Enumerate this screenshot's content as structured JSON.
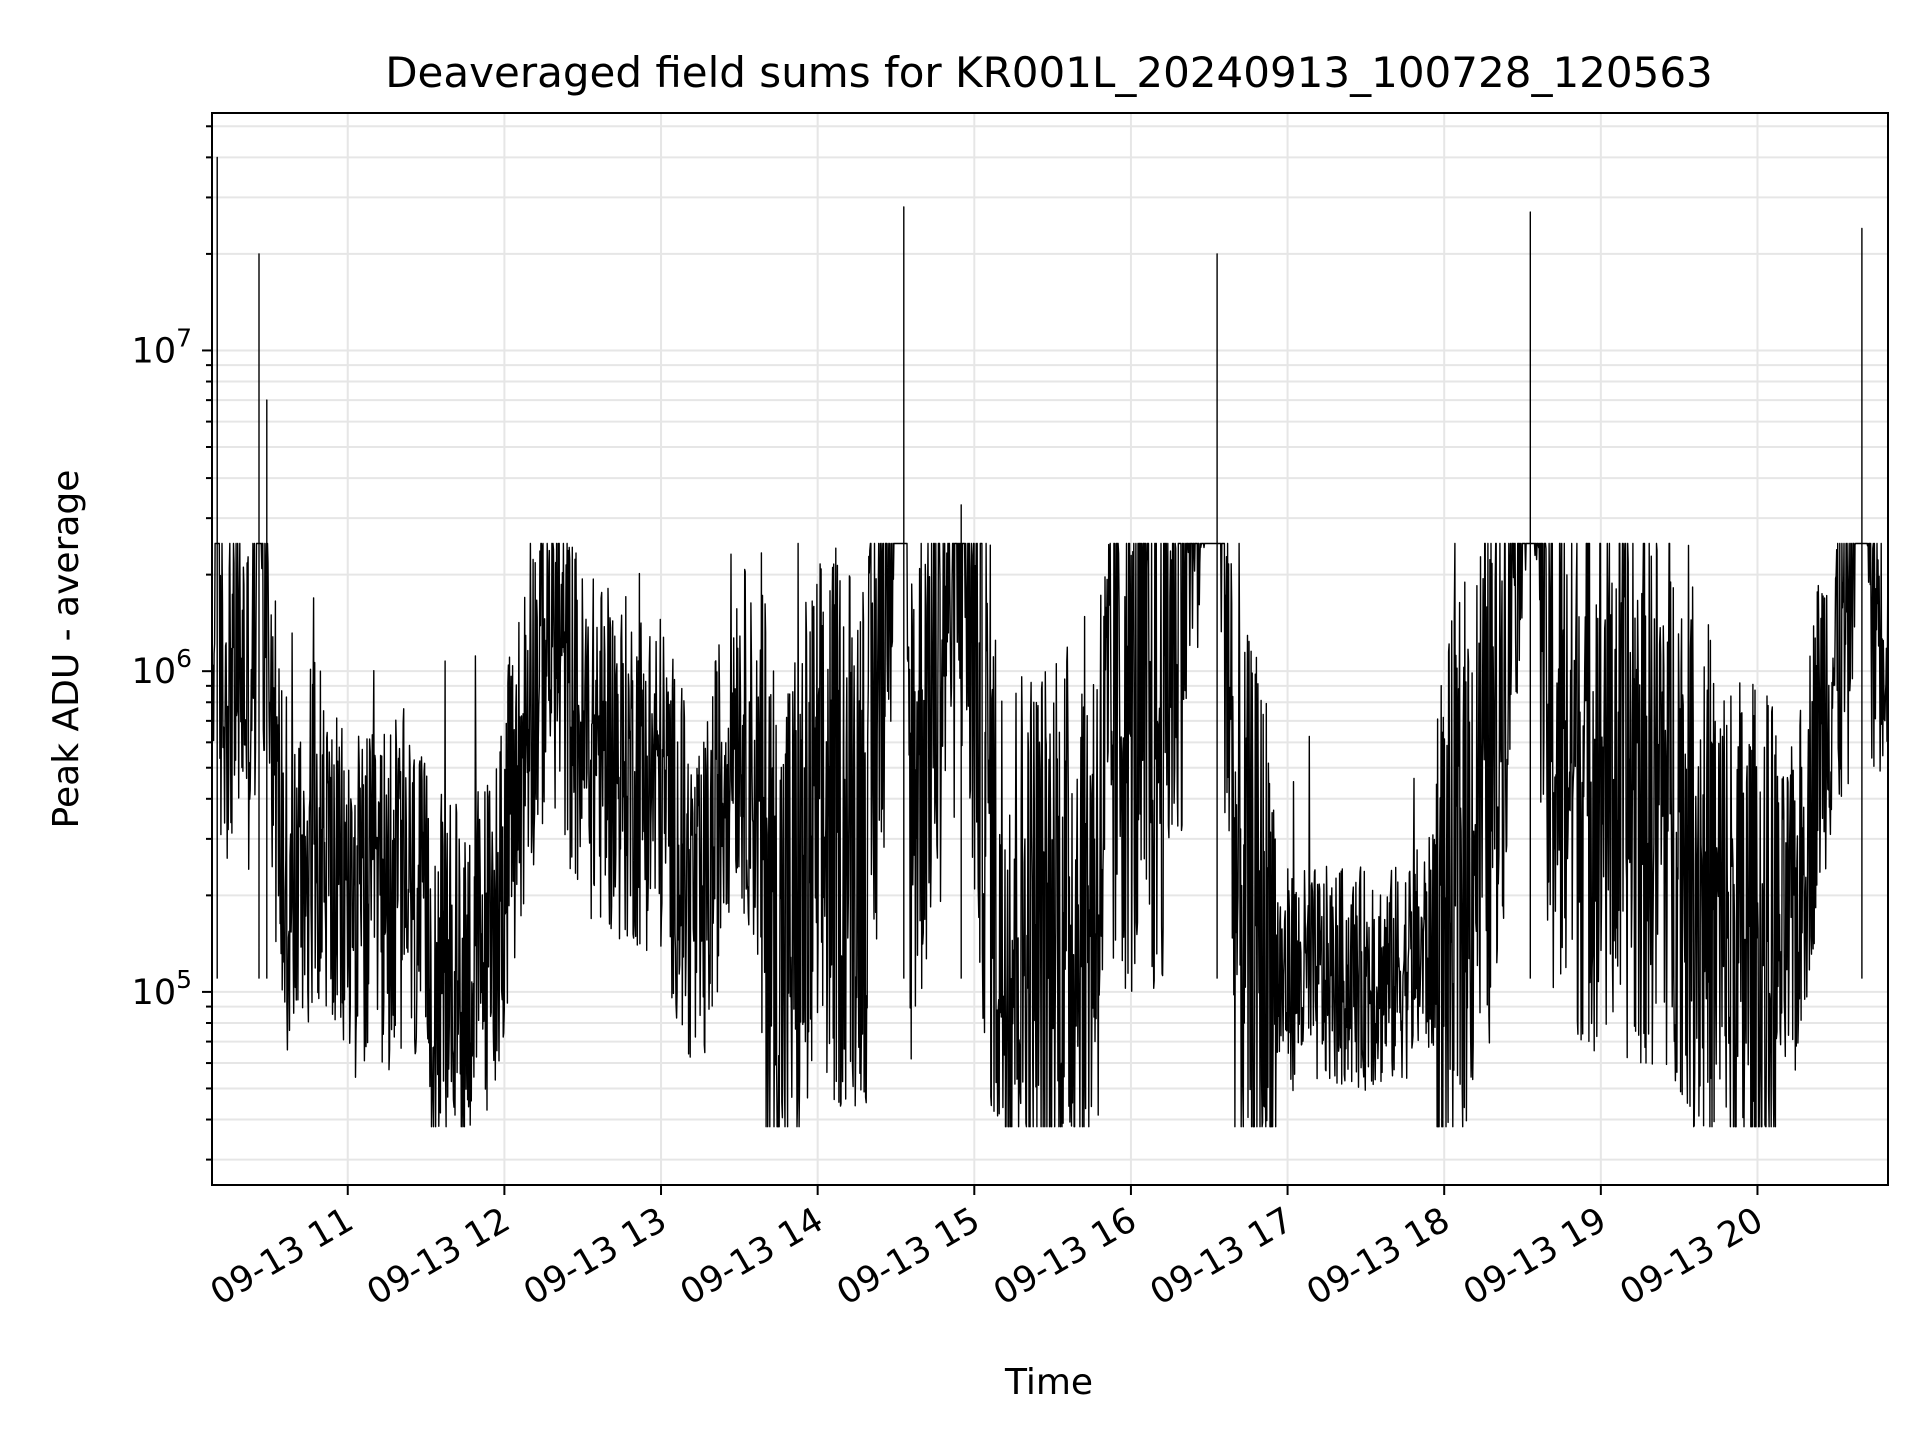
{
  "chart_data": {
    "type": "line",
    "title": "Deaveraged field sums for KR001L_20240913_100728_120563",
    "xlabel": "Time",
    "ylabel": "Peak ADU - average",
    "yscale": "log",
    "ylim": [
      25000,
      55000000
    ],
    "xlim": [
      "2024-09-13 10:08",
      "2024-09-13 20:50"
    ],
    "x_ticks": [
      {
        "value": "2024-09-13 11:00",
        "label": "09-13 11"
      },
      {
        "value": "2024-09-13 12:00",
        "label": "09-13 12"
      },
      {
        "value": "2024-09-13 13:00",
        "label": "09-13 13"
      },
      {
        "value": "2024-09-13 14:00",
        "label": "09-13 14"
      },
      {
        "value": "2024-09-13 15:00",
        "label": "09-13 15"
      },
      {
        "value": "2024-09-13 16:00",
        "label": "09-13 16"
      },
      {
        "value": "2024-09-13 17:00",
        "label": "09-13 17"
      },
      {
        "value": "2024-09-13 18:00",
        "label": "09-13 18"
      },
      {
        "value": "2024-09-13 19:00",
        "label": "09-13 19"
      },
      {
        "value": "2024-09-13 20:00",
        "label": "09-13 20"
      }
    ],
    "y_ticks": [
      {
        "value": 100000,
        "base": "10",
        "exp": "5"
      },
      {
        "value": 1000000,
        "base": "10",
        "exp": "6"
      },
      {
        "value": 10000000,
        "base": "10",
        "exp": "7"
      }
    ],
    "grid": true,
    "line_color": "#000000",
    "series": [
      {
        "values": [
          [
            "2024-09-13 10:08",
            450000
          ],
          [
            "2024-09-13 10:09",
            2000000
          ],
          [
            "2024-09-13 10:10",
            40000000
          ],
          [
            "2024-09-13 10:11",
            850000
          ],
          [
            "2024-09-13 10:15",
            950000
          ],
          [
            "2024-09-13 10:19",
            1100000
          ],
          [
            "2024-09-13 10:22",
            800000
          ],
          [
            "2024-09-13 10:25",
            1400000
          ],
          [
            "2024-09-13 10:26",
            20000000
          ],
          [
            "2024-09-13 10:28",
            1000000
          ],
          [
            "2024-09-13 10:29",
            7000000
          ],
          [
            "2024-09-13 10:30",
            1200000
          ],
          [
            "2024-09-13 10:33",
            400000
          ],
          [
            "2024-09-13 10:38",
            180000
          ],
          [
            "2024-09-13 10:48",
            350000
          ],
          [
            "2024-09-13 10:56",
            200000
          ],
          [
            "2024-09-13 11:10",
            180000
          ],
          [
            "2024-09-13 11:22",
            220000
          ],
          [
            "2024-09-13 11:33",
            120000
          ],
          [
            "2024-09-13 11:45",
            110000
          ],
          [
            "2024-09-13 11:55",
            150000
          ],
          [
            "2024-09-13 12:03",
            350000
          ],
          [
            "2024-09-13 12:10",
            800000
          ],
          [
            "2024-09-13 12:18",
            1400000
          ],
          [
            "2024-09-13 12:30",
            600000
          ],
          [
            "2024-09-13 12:45",
            500000
          ],
          [
            "2024-09-13 13:00",
            450000
          ],
          [
            "2024-09-13 13:15",
            150000
          ],
          [
            "2024-09-13 13:28",
            800000
          ],
          [
            "2024-09-13 13:35",
            500000
          ],
          [
            "2024-09-13 13:45",
            120000
          ],
          [
            "2024-09-13 14:00",
            300000
          ],
          [
            "2024-09-13 14:20",
            350000
          ],
          [
            "2024-09-13 14:33",
            28000000
          ],
          [
            "2024-09-13 14:35",
            400000
          ],
          [
            "2024-09-13 14:55",
            3300000
          ],
          [
            "2024-09-13 15:10",
            150000
          ],
          [
            "2024-09-13 15:30",
            150000
          ],
          [
            "2024-09-13 15:45",
            200000
          ],
          [
            "2024-09-13 15:55",
            800000
          ],
          [
            "2024-09-13 16:10",
            600000
          ],
          [
            "2024-09-13 16:33",
            20000000
          ],
          [
            "2024-09-13 16:40",
            200000
          ],
          [
            "2024-09-13 16:55",
            110000
          ],
          [
            "2024-09-13 17:15",
            110000
          ],
          [
            "2024-09-13 17:40",
            110000
          ],
          [
            "2024-09-13 18:00",
            150000
          ],
          [
            "2024-09-13 18:20",
            600000
          ],
          [
            "2024-09-13 18:33",
            27000000
          ],
          [
            "2024-09-13 18:40",
            600000
          ],
          [
            "2024-09-13 19:00",
            500000
          ],
          [
            "2024-09-13 19:30",
            400000
          ],
          [
            "2024-09-13 19:45",
            150000
          ],
          [
            "2024-09-13 20:05",
            110000
          ],
          [
            "2024-09-13 20:15",
            180000
          ],
          [
            "2024-09-13 20:25",
            800000
          ],
          [
            "2024-09-13 20:35",
            1400000
          ],
          [
            "2024-09-13 20:40",
            24000000
          ],
          [
            "2024-09-13 20:44",
            1600000
          ],
          [
            "2024-09-13 20:50",
            1700000
          ]
        ]
      }
    ]
  }
}
